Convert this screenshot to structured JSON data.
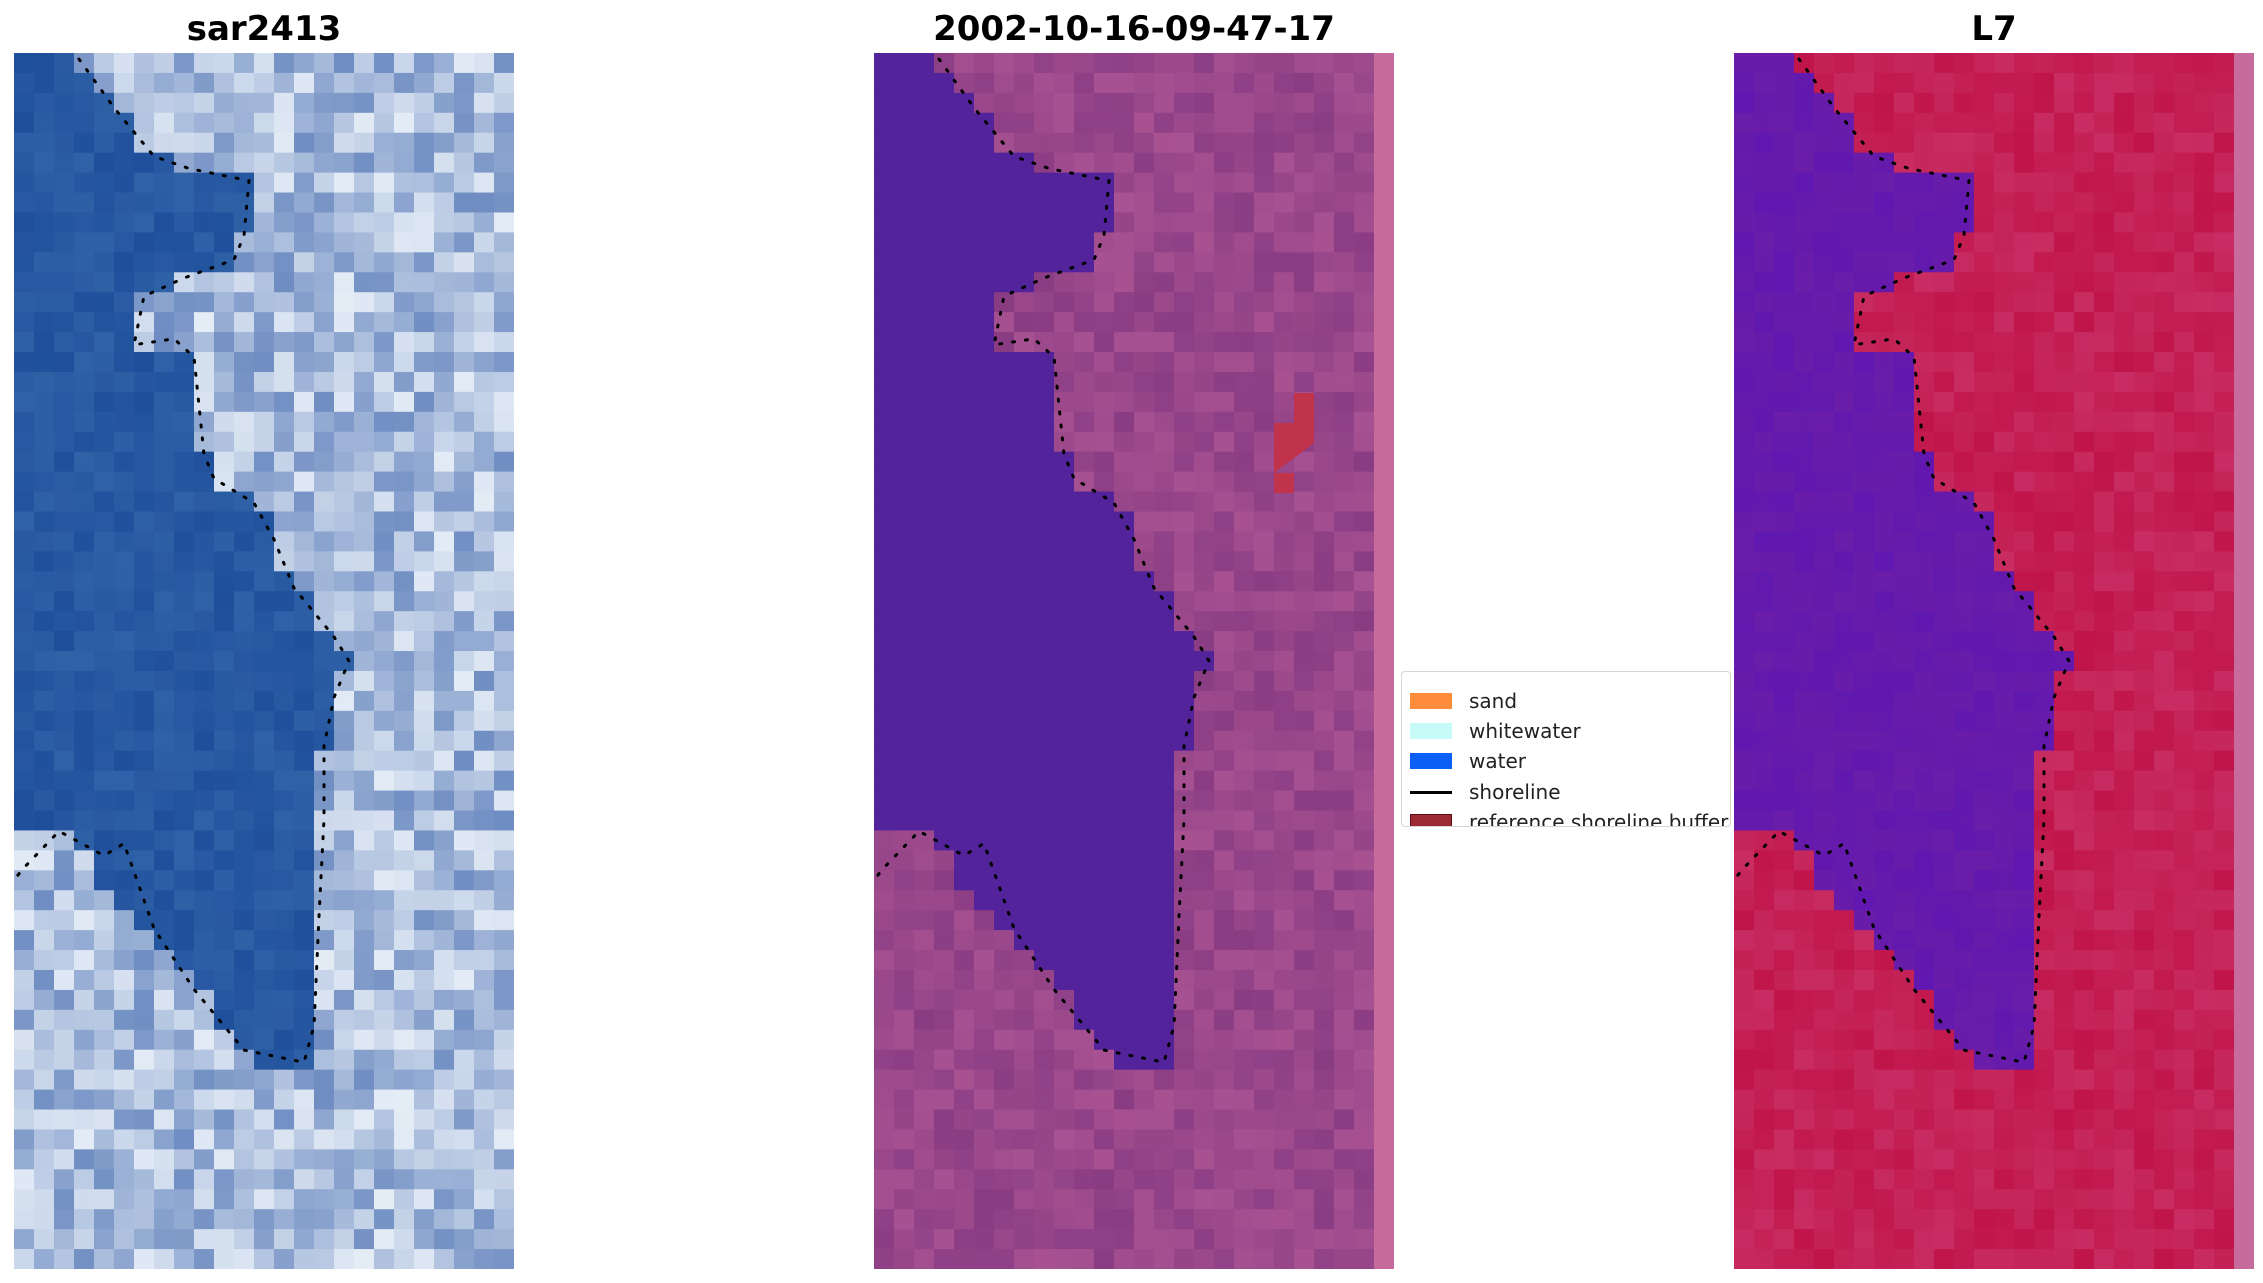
{
  "panels": [
    {
      "title": "sar2413",
      "style": "rgb"
    },
    {
      "title": "2002-10-16-09-47-17",
      "style": "classified"
    },
    {
      "title": "L7",
      "style": "index"
    }
  ],
  "legend": {
    "items": [
      {
        "label": "sand",
        "color": "#ff8c3a",
        "kind": "patch"
      },
      {
        "label": "whitewater",
        "color": "#c6fbf8",
        "kind": "patch"
      },
      {
        "label": "water",
        "color": "#0b5ff5",
        "kind": "patch"
      },
      {
        "label": "shoreline",
        "color": "#000000",
        "kind": "line"
      },
      {
        "label": "reference shoreline buffer",
        "color": "#9b2a35",
        "kind": "patch"
      }
    ]
  },
  "colors": {
    "water_rgb": "#1f4f9b",
    "land_rgb": "#9fb3d6",
    "water_class": "#52239a",
    "land_class": "#8a3c83",
    "water_index": "#6a1da8",
    "land_index": "#c0144a",
    "edge_strip": "#c76a9c"
  }
}
